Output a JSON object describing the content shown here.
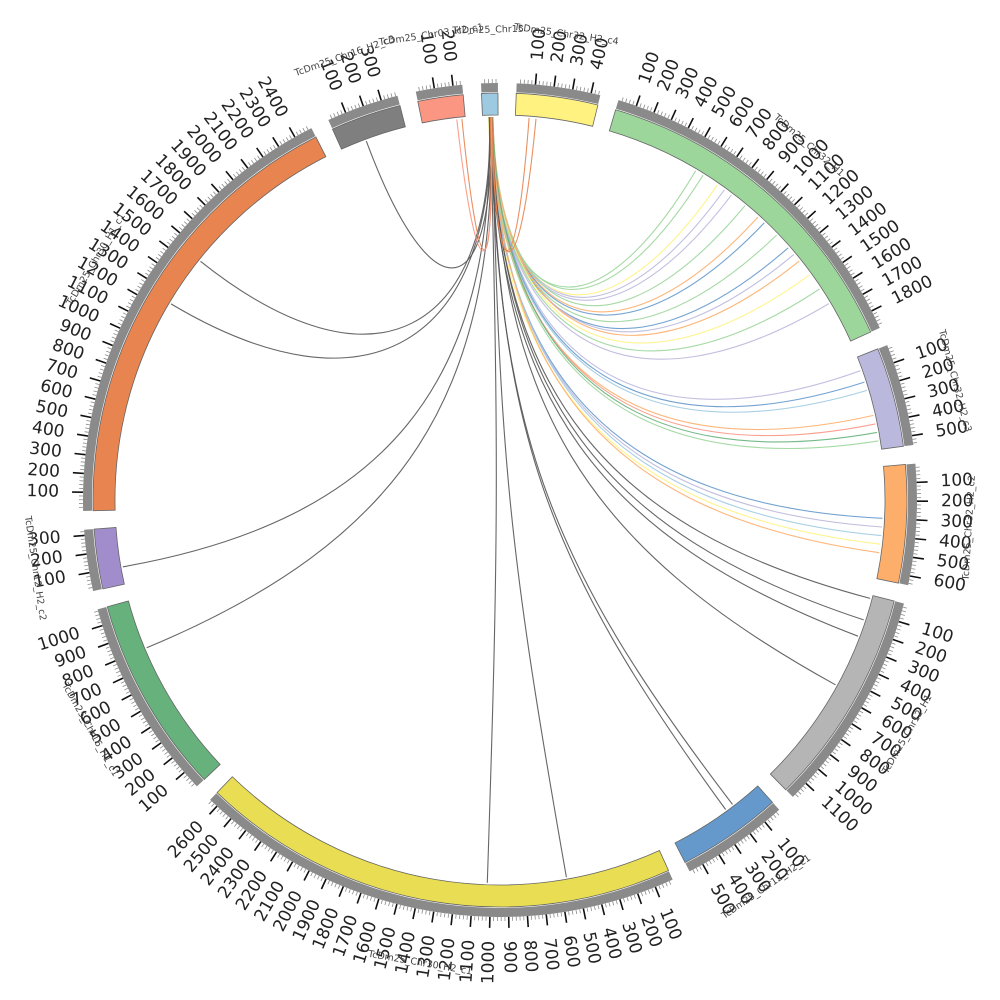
{
  "chart_data": {
    "type": "chord",
    "tick_step": 100,
    "segments": [
      {
        "name": "TcDm25_Chr32_H2_c4",
        "length": 450,
        "color": "#FFF280"
      },
      {
        "name": "TcDm25_Chr32_H1",
        "length": 1900,
        "color": "#9CD69B"
      },
      {
        "name": "TcDm25_Chr32_H2_c3",
        "length": 550,
        "color": "#BBB8DD"
      },
      {
        "name": "TcDm25_Chr32_H2_c2",
        "length": 650,
        "color": "#FDAE6B"
      },
      {
        "name": "TcDm25_Chr12_H1",
        "length": 1200,
        "color": "#B5B5B5"
      },
      {
        "name": "TcDm25_Chr12_H2_c1",
        "length": 580,
        "color": "#6599CC"
      },
      {
        "name": "TcDm25_Chr30_H2_c1",
        "length": 2650,
        "color": "#E9DE53"
      },
      {
        "name": "TcDm25_Chr16_H1_c1",
        "length": 1090,
        "color": "#66B17C"
      },
      {
        "name": "TcDm25_Chr12_H2_c2",
        "length": 330,
        "color": "#A18DCB"
      },
      {
        "name": "TcDm25_Chr30_H1_c1",
        "length": 2500,
        "color": "#E78450"
      },
      {
        "name": "TcDm25_Chr16_H2_c3",
        "length": 390,
        "color": "#7F7F7F"
      },
      {
        "name": "TcDm25_Chr03_H2_c1",
        "length": 250,
        "color": "#FA9682"
      },
      {
        "name": "TcDm25_Chr15",
        "length": 90,
        "color": "#9ECAE1"
      }
    ],
    "links": [
      {
        "from": [
          12,
          50
        ],
        "to": [
          1,
          550
        ],
        "color": "#9CD69B"
      },
      {
        "from": [
          12,
          55
        ],
        "to": [
          1,
          600
        ],
        "color": "#9CD69B"
      },
      {
        "from": [
          12,
          45
        ],
        "to": [
          1,
          700
        ],
        "color": "#FFF280"
      },
      {
        "from": [
          12,
          50
        ],
        "to": [
          1,
          750
        ],
        "color": "#BBB8DD"
      },
      {
        "from": [
          12,
          40
        ],
        "to": [
          1,
          800
        ],
        "color": "#BBB8DD"
      },
      {
        "from": [
          12,
          60
        ],
        "to": [
          1,
          900
        ],
        "color": "#9CD69B"
      },
      {
        "from": [
          12,
          50
        ],
        "to": [
          1,
          1000
        ],
        "color": "#FDAE6B"
      },
      {
        "from": [
          12,
          45
        ],
        "to": [
          1,
          1050
        ],
        "color": "#6599CC"
      },
      {
        "from": [
          12,
          40
        ],
        "to": [
          1,
          1150
        ],
        "color": "#9CD69B"
      },
      {
        "from": [
          12,
          35
        ],
        "to": [
          1,
          1250
        ],
        "color": "#6599CC"
      },
      {
        "from": [
          12,
          55
        ],
        "to": [
          1,
          1300
        ],
        "color": "#BBB8DD"
      },
      {
        "from": [
          12,
          60
        ],
        "to": [
          1,
          1350
        ],
        "color": "#FDAE6B"
      },
      {
        "from": [
          12,
          50
        ],
        "to": [
          1,
          1450
        ],
        "color": "#FFF280"
      },
      {
        "from": [
          12,
          45
        ],
        "to": [
          1,
          1550
        ],
        "color": "#9CD69B"
      },
      {
        "from": [
          12,
          40
        ],
        "to": [
          1,
          1650
        ],
        "color": "#BBB8DD"
      },
      {
        "from": [
          12,
          55
        ],
        "to": [
          2,
          80
        ],
        "color": "#BBB8DD"
      },
      {
        "from": [
          12,
          50
        ],
        "to": [
          2,
          150
        ],
        "color": "#6599CC"
      },
      {
        "from": [
          12,
          45
        ],
        "to": [
          2,
          200
        ],
        "color": "#9ECAE1"
      },
      {
        "from": [
          12,
          40
        ],
        "to": [
          2,
          350
        ],
        "color": "#FDAE6B"
      },
      {
        "from": [
          12,
          55
        ],
        "to": [
          2,
          400
        ],
        "color": "#FA9682"
      },
      {
        "from": [
          12,
          60
        ],
        "to": [
          2,
          450
        ],
        "color": "#66B17C"
      },
      {
        "from": [
          12,
          50
        ],
        "to": [
          2,
          500
        ],
        "color": "#9CD69B"
      },
      {
        "from": [
          12,
          40
        ],
        "to": [
          3,
          300
        ],
        "color": "#6599CC"
      },
      {
        "from": [
          12,
          45
        ],
        "to": [
          3,
          350
        ],
        "color": "#BBB8DD"
      },
      {
        "from": [
          12,
          50
        ],
        "to": [
          3,
          400
        ],
        "color": "#9ECAE1"
      },
      {
        "from": [
          12,
          35
        ],
        "to": [
          3,
          450
        ],
        "color": "#FFF280"
      },
      {
        "from": [
          12,
          55
        ],
        "to": [
          3,
          500
        ],
        "color": "#FDAE6B"
      },
      {
        "from": [
          12,
          45
        ],
        "to": [
          4,
          20
        ],
        "color": "#555555"
      },
      {
        "from": [
          12,
          50
        ],
        "to": [
          4,
          150
        ],
        "color": "#555555"
      },
      {
        "from": [
          12,
          40
        ],
        "to": [
          4,
          250
        ],
        "color": "#555555"
      },
      {
        "from": [
          12,
          55
        ],
        "to": [
          4,
          560
        ],
        "color": "#555555"
      },
      {
        "from": [
          12,
          45
        ],
        "to": [
          5,
          180
        ],
        "color": "#555555"
      },
      {
        "from": [
          12,
          50
        ],
        "to": [
          5,
          230
        ],
        "color": "#555555"
      },
      {
        "from": [
          12,
          55
        ],
        "to": [
          6,
          560
        ],
        "color": "#555555"
      },
      {
        "from": [
          12,
          45
        ],
        "to": [
          6,
          1020
        ],
        "color": "#555555"
      },
      {
        "from": [
          12,
          40
        ],
        "to": [
          8,
          100
        ],
        "color": "#555555"
      },
      {
        "from": [
          12,
          50
        ],
        "to": [
          7,
          800
        ],
        "color": "#555555"
      },
      {
        "from": [
          12,
          45
        ],
        "to": [
          9,
          1250
        ],
        "color": "#555555"
      },
      {
        "from": [
          12,
          40
        ],
        "to": [
          9,
          1550
        ],
        "color": "#555555"
      },
      {
        "from": [
          12,
          50
        ],
        "to": [
          10,
          150
        ],
        "color": "#555555"
      },
      {
        "from": [
          12,
          55
        ],
        "to": [
          0,
          80
        ],
        "color": "#E78450"
      },
      {
        "from": [
          12,
          50
        ],
        "to": [
          0,
          120
        ],
        "color": "#E78450"
      },
      {
        "from": [
          12,
          45
        ],
        "to": [
          11,
          230
        ],
        "color": "#E78450"
      },
      {
        "from": [
          12,
          50
        ],
        "to": [
          11,
          200
        ],
        "color": "#FA9682"
      }
    ]
  }
}
